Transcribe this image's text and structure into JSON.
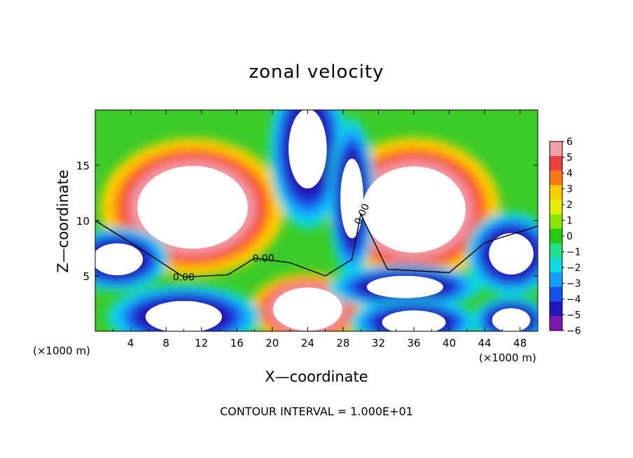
{
  "chart_data": {
    "type": "heatmap",
    "title": "zonal velocity",
    "xlabel": "X—coordinate",
    "ylabel": "Z—coordinate",
    "x_unit": "(×1000 m)",
    "footer": "CONTOUR INTERVAL = 1.000E+01",
    "xlim": [
      0,
      50
    ],
    "ylim": [
      0,
      20
    ],
    "x_ticks": [
      4,
      8,
      12,
      16,
      20,
      24,
      28,
      32,
      36,
      40,
      44,
      48
    ],
    "x_tick_labels": [
      "4",
      "8",
      "12",
      "16",
      "20",
      "24",
      "28",
      "32",
      "36",
      "40",
      "44",
      "48"
    ],
    "y_ticks": [
      5,
      10,
      15
    ],
    "y_tick_labels": [
      "5",
      "10",
      "15"
    ],
    "colorbar": {
      "range": [
        -6,
        6
      ],
      "tick_labels": [
        "6",
        "5",
        "4",
        "3",
        "2",
        "1",
        "0",
        "−1",
        "−2",
        "−3",
        "−4",
        "−5",
        "−6"
      ],
      "colors": [
        "#f4a0a8",
        "#f04040",
        "#ff7818",
        "#ffcc00",
        "#e4f000",
        "#8ce400",
        "#22cc10",
        "#20e088",
        "#10d8e0",
        "#14a0ff",
        "#1450f0",
        "#2018b8",
        "#7a18b0"
      ]
    },
    "contour_labels": [
      {
        "text": "0.00",
        "x": 10.0,
        "y": 4.9
      },
      {
        "text": "0.00",
        "x": 19.0,
        "y": 6.6
      },
      {
        "text": "0.00",
        "x": 30.1,
        "y": 10.6
      }
    ],
    "structure": {
      "positive_cores": [
        {
          "x": 11.0,
          "y": 11.2,
          "rx": 8.0,
          "ry": 4.8
        },
        {
          "x": 36.0,
          "y": 11.0,
          "rx": 7.5,
          "ry": 5.0
        },
        {
          "x": 24.0,
          "y": 2.0,
          "rx": 5.0,
          "ry": 2.5
        }
      ],
      "negative_cores": [
        {
          "x": 24.0,
          "y": 16.5,
          "rx": 3.0,
          "ry": 5.0
        },
        {
          "x": 29.0,
          "y": 12.0,
          "rx": 1.8,
          "ry": 5.0
        },
        {
          "x": 2.5,
          "y": 6.5,
          "rx": 4.0,
          "ry": 2.0
        },
        {
          "x": 47.0,
          "y": 7.0,
          "rx": 3.5,
          "ry": 2.6
        },
        {
          "x": 35.0,
          "y": 4.0,
          "rx": 6.0,
          "ry": 1.4
        },
        {
          "x": 10.0,
          "y": 1.3,
          "rx": 6.0,
          "ry": 2.0
        },
        {
          "x": 36.0,
          "y": 0.8,
          "rx": 5.0,
          "ry": 1.5
        },
        {
          "x": 47.0,
          "y": 1.0,
          "rx": 3.0,
          "ry": 1.5
        }
      ]
    }
  }
}
